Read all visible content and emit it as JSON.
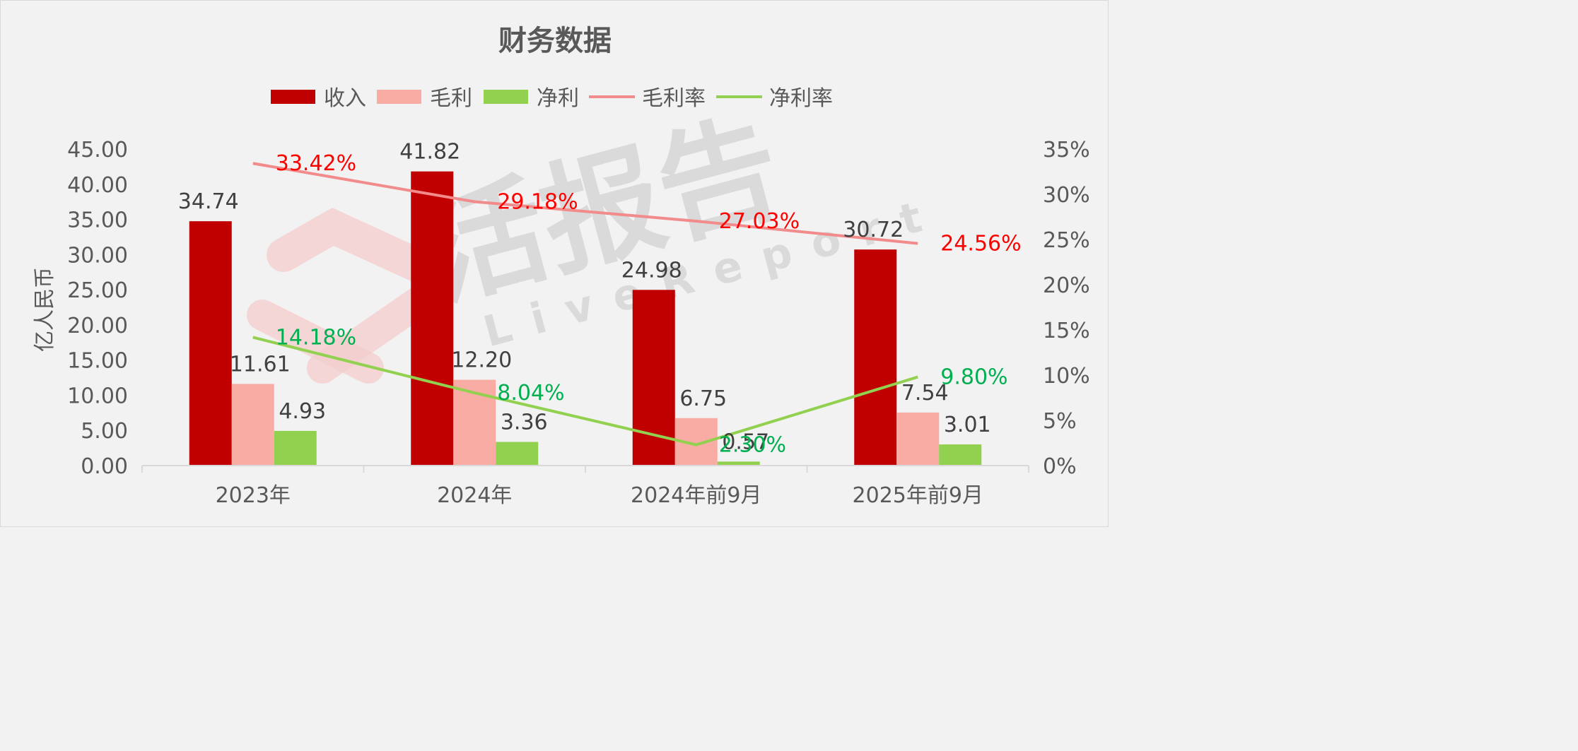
{
  "chart_data": {
    "type": "bar",
    "title": "财务数据",
    "ylabel": "亿人民币",
    "categories": [
      "2023年",
      "2024年",
      "2024年前9月",
      "2025年前9月"
    ],
    "ylim": [
      0,
      45
    ],
    "y_ticks": [
      "0.00",
      "5.00",
      "10.00",
      "15.00",
      "20.00",
      "25.00",
      "30.00",
      "35.00",
      "40.00",
      "45.00"
    ],
    "y2lim": [
      0,
      35
    ],
    "y2_ticks": [
      "0%",
      "5%",
      "10%",
      "15%",
      "20%",
      "25%",
      "30%",
      "35%"
    ],
    "legend_position": "top",
    "grid": false,
    "series": [
      {
        "name": "收入",
        "kind": "bar",
        "color": "#c00000",
        "values": [
          34.74,
          41.82,
          24.98,
          30.72
        ],
        "labels": [
          "34.74",
          "41.82",
          "24.98",
          "30.72"
        ]
      },
      {
        "name": "毛利",
        "kind": "bar",
        "color": "#f8aca4",
        "values": [
          11.61,
          12.2,
          6.75,
          7.54
        ],
        "labels": [
          "11.61",
          "12.20",
          "6.75",
          "7.54"
        ]
      },
      {
        "name": "净利",
        "kind": "bar",
        "color": "#92d050",
        "values": [
          4.93,
          3.36,
          0.57,
          3.01
        ],
        "labels": [
          "4.93",
          "3.36",
          "0.57",
          "3.01"
        ]
      },
      {
        "name": "毛利率",
        "kind": "line",
        "axis": "right",
        "color": "#f28b8b",
        "label_color": "#ff0000",
        "values": [
          33.42,
          29.18,
          27.03,
          24.56
        ],
        "labels": [
          "33.42%",
          "29.18%",
          "27.03%",
          "24.56%"
        ]
      },
      {
        "name": "净利率",
        "kind": "line",
        "axis": "right",
        "color": "#92d050",
        "label_color": "#00b050",
        "values": [
          14.18,
          8.04,
          2.3,
          9.8
        ],
        "labels": [
          "14.18%",
          "8.04%",
          "2.30%",
          "9.80%"
        ]
      }
    ]
  },
  "watermark": {
    "text": "活报告",
    "subtext": "LiveReport"
  }
}
